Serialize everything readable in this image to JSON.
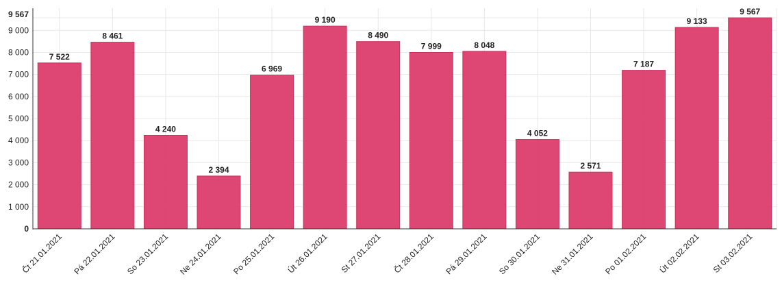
{
  "chart_data": {
    "type": "bar",
    "title": "",
    "xlabel": "",
    "ylabel": "",
    "categories": [
      "Čt 21.01.2021",
      "Pá 22.01.2021",
      "So 23.01.2021",
      "Ne 24.01.2021",
      "Po 25.01.2021",
      "Út 26.01.2021",
      "St 27.01.2021",
      "Čt 28.01.2021",
      "Pá 29.01.2021",
      "So 30.01.2021",
      "Ne 31.01.2021",
      "Po 01.02.2021",
      "Út 02.02.2021",
      "St 03.02.2021"
    ],
    "values": [
      7522,
      8461,
      4240,
      2394,
      6969,
      9190,
      8490,
      7999,
      8048,
      4052,
      2571,
      7187,
      9133,
      9567
    ],
    "value_labels": [
      "7 522",
      "8 461",
      "4 240",
      "2 394",
      "6 969",
      "9 190",
      "8 490",
      "7 999",
      "8 048",
      "4 052",
      "2 571",
      "7 187",
      "9 133",
      "9 567"
    ],
    "ylim": [
      0,
      9567
    ],
    "yticks": [
      0,
      1000,
      2000,
      3000,
      4000,
      5000,
      6000,
      7000,
      8000,
      9000,
      9567
    ],
    "ytick_labels": [
      "0",
      "1 000",
      "2 000",
      "3 000",
      "4 000",
      "5 000",
      "6 000",
      "7 000",
      "8 000",
      "9 000",
      "9 567"
    ],
    "bar_color": "#dc3d6b",
    "grid": true,
    "legend": "none"
  }
}
